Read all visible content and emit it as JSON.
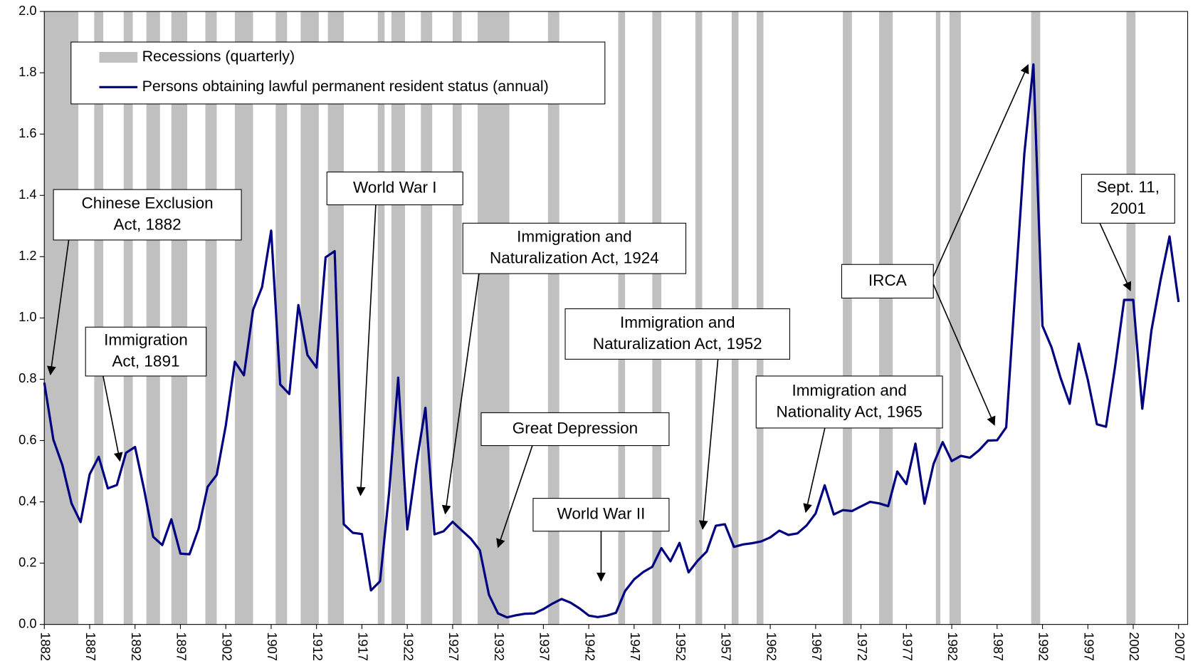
{
  "chart_data": {
    "type": "line",
    "x": [
      1882,
      1883,
      1884,
      1885,
      1886,
      1887,
      1888,
      1889,
      1890,
      1891,
      1892,
      1893,
      1894,
      1895,
      1896,
      1897,
      1898,
      1899,
      1900,
      1901,
      1902,
      1903,
      1904,
      1905,
      1906,
      1907,
      1908,
      1909,
      1910,
      1911,
      1912,
      1913,
      1914,
      1915,
      1916,
      1917,
      1918,
      1919,
      1920,
      1921,
      1922,
      1923,
      1924,
      1925,
      1926,
      1927,
      1928,
      1929,
      1930,
      1931,
      1932,
      1933,
      1934,
      1935,
      1936,
      1937,
      1938,
      1939,
      1940,
      1941,
      1942,
      1943,
      1944,
      1945,
      1946,
      1947,
      1948,
      1949,
      1950,
      1951,
      1952,
      1953,
      1954,
      1955,
      1956,
      1957,
      1958,
      1959,
      1960,
      1961,
      1962,
      1963,
      1964,
      1965,
      1966,
      1967,
      1968,
      1969,
      1970,
      1971,
      1972,
      1973,
      1974,
      1975,
      1976,
      1977,
      1978,
      1979,
      1980,
      1981,
      1982,
      1983,
      1984,
      1985,
      1986,
      1987,
      1988,
      1989,
      1990,
      1991,
      1992,
      1993,
      1994,
      1995,
      1996,
      1997,
      1998,
      1999,
      2000,
      2001,
      2002,
      2003,
      2004,
      2005,
      2006,
      2007
    ],
    "series": [
      {
        "name": "Persons obtaining lawful permanent resident status (annual)",
        "color": "#000080",
        "values": [
          0.789,
          0.603,
          0.519,
          0.395,
          0.334,
          0.49,
          0.547,
          0.444,
          0.455,
          0.56,
          0.579,
          0.44,
          0.286,
          0.259,
          0.343,
          0.231,
          0.229,
          0.312,
          0.449,
          0.488,
          0.649,
          0.857,
          0.813,
          1.026,
          1.101,
          1.285,
          0.783,
          0.752,
          1.042,
          0.879,
          0.838,
          1.198,
          1.218,
          0.327,
          0.299,
          0.295,
          0.111,
          0.141,
          0.43,
          0.805,
          0.31,
          0.523,
          0.707,
          0.294,
          0.304,
          0.335,
          0.307,
          0.28,
          0.242,
          0.097,
          0.036,
          0.023,
          0.03,
          0.035,
          0.036,
          0.05,
          0.068,
          0.083,
          0.071,
          0.052,
          0.029,
          0.024,
          0.029,
          0.038,
          0.109,
          0.147,
          0.171,
          0.188,
          0.249,
          0.206,
          0.266,
          0.17,
          0.208,
          0.238,
          0.322,
          0.327,
          0.253,
          0.261,
          0.265,
          0.271,
          0.284,
          0.306,
          0.292,
          0.297,
          0.323,
          0.362,
          0.454,
          0.359,
          0.373,
          0.37,
          0.385,
          0.4,
          0.395,
          0.386,
          0.499,
          0.458,
          0.59,
          0.394,
          0.524,
          0.595,
          0.533,
          0.55,
          0.544,
          0.568,
          0.6,
          0.601,
          0.643,
          1.091,
          1.536,
          1.827,
          0.974,
          0.904,
          0.804,
          0.72,
          0.916,
          0.798,
          0.653,
          0.645,
          0.841,
          1.059,
          1.059,
          0.704,
          0.958,
          1.122,
          1.266,
          1.052
        ]
      }
    ],
    "recessions": {
      "name": "Recessions (quarterly)",
      "color": "#c0c0c0",
      "ranges": [
        [
          1882,
          1885.75
        ],
        [
          1887.5,
          1888.5
        ],
        [
          1890.75,
          1891.75
        ],
        [
          1893.25,
          1894.75
        ],
        [
          1896,
          1897.75
        ],
        [
          1899.75,
          1901
        ],
        [
          1903,
          1905
        ],
        [
          1907.5,
          1908.75
        ],
        [
          1910.25,
          1912.25
        ],
        [
          1913.25,
          1915
        ],
        [
          1918.75,
          1919.5
        ],
        [
          1920.25,
          1921.75
        ],
        [
          1923.5,
          1924.75
        ],
        [
          1927,
          1928
        ],
        [
          1929.75,
          1933.25
        ],
        [
          1937.5,
          1938.75
        ],
        [
          1945.25,
          1946
        ],
        [
          1949,
          1950
        ],
        [
          1953.75,
          1954.5
        ],
        [
          1957.75,
          1958.5
        ],
        [
          1960.5,
          1961.25
        ],
        [
          1970,
          1971
        ],
        [
          1974,
          1975.5
        ],
        [
          1980.25,
          1980.75
        ],
        [
          1981.75,
          1983
        ],
        [
          1990.75,
          1991.75
        ],
        [
          2001.25,
          2002.25
        ]
      ]
    },
    "annotations": [
      {
        "lines": [
          "Chinese Exclusion",
          "Act, 1882"
        ]
      },
      {
        "lines": [
          "Immigration",
          "Act, 1891"
        ]
      },
      {
        "lines": [
          "World War I"
        ]
      },
      {
        "lines": [
          "Immigration and",
          "Naturalization Act, 1924"
        ]
      },
      {
        "lines": [
          "Great Depression"
        ]
      },
      {
        "lines": [
          "World War II"
        ]
      },
      {
        "lines": [
          "Immigration and",
          "Naturalization Act, 1952"
        ]
      },
      {
        "lines": [
          "Immigration and",
          "Nationality Act, 1965"
        ]
      },
      {
        "lines": [
          "IRCA"
        ]
      },
      {
        "lines": [
          "Sept. 11,",
          "2001"
        ]
      }
    ],
    "xlim": [
      1882,
      2008
    ],
    "xticks": [
      1882,
      1887,
      1892,
      1897,
      1902,
      1907,
      1912,
      1917,
      1922,
      1927,
      1932,
      1937,
      1942,
      1947,
      1952,
      1957,
      1962,
      1967,
      1972,
      1977,
      1982,
      1987,
      1992,
      1997,
      2002,
      2007
    ],
    "ylim": [
      0,
      2
    ],
    "yticks": [
      {
        "value": 0,
        "label": "0.0"
      },
      {
        "value": 0.2,
        "label": "0.2"
      },
      {
        "value": 0.4,
        "label": "0.4"
      },
      {
        "value": 0.6,
        "label": "0.6"
      },
      {
        "value": 0.8,
        "label": "0.8"
      },
      {
        "value": 1.0,
        "label": "1.0"
      },
      {
        "value": 1.2,
        "label": "1.2"
      },
      {
        "value": 1.4,
        "label": "1.4"
      },
      {
        "value": 1.6,
        "label": "1.6"
      },
      {
        "value": 1.8,
        "label": "1.8"
      },
      {
        "value": 2.0,
        "label": "2.0"
      }
    ]
  }
}
